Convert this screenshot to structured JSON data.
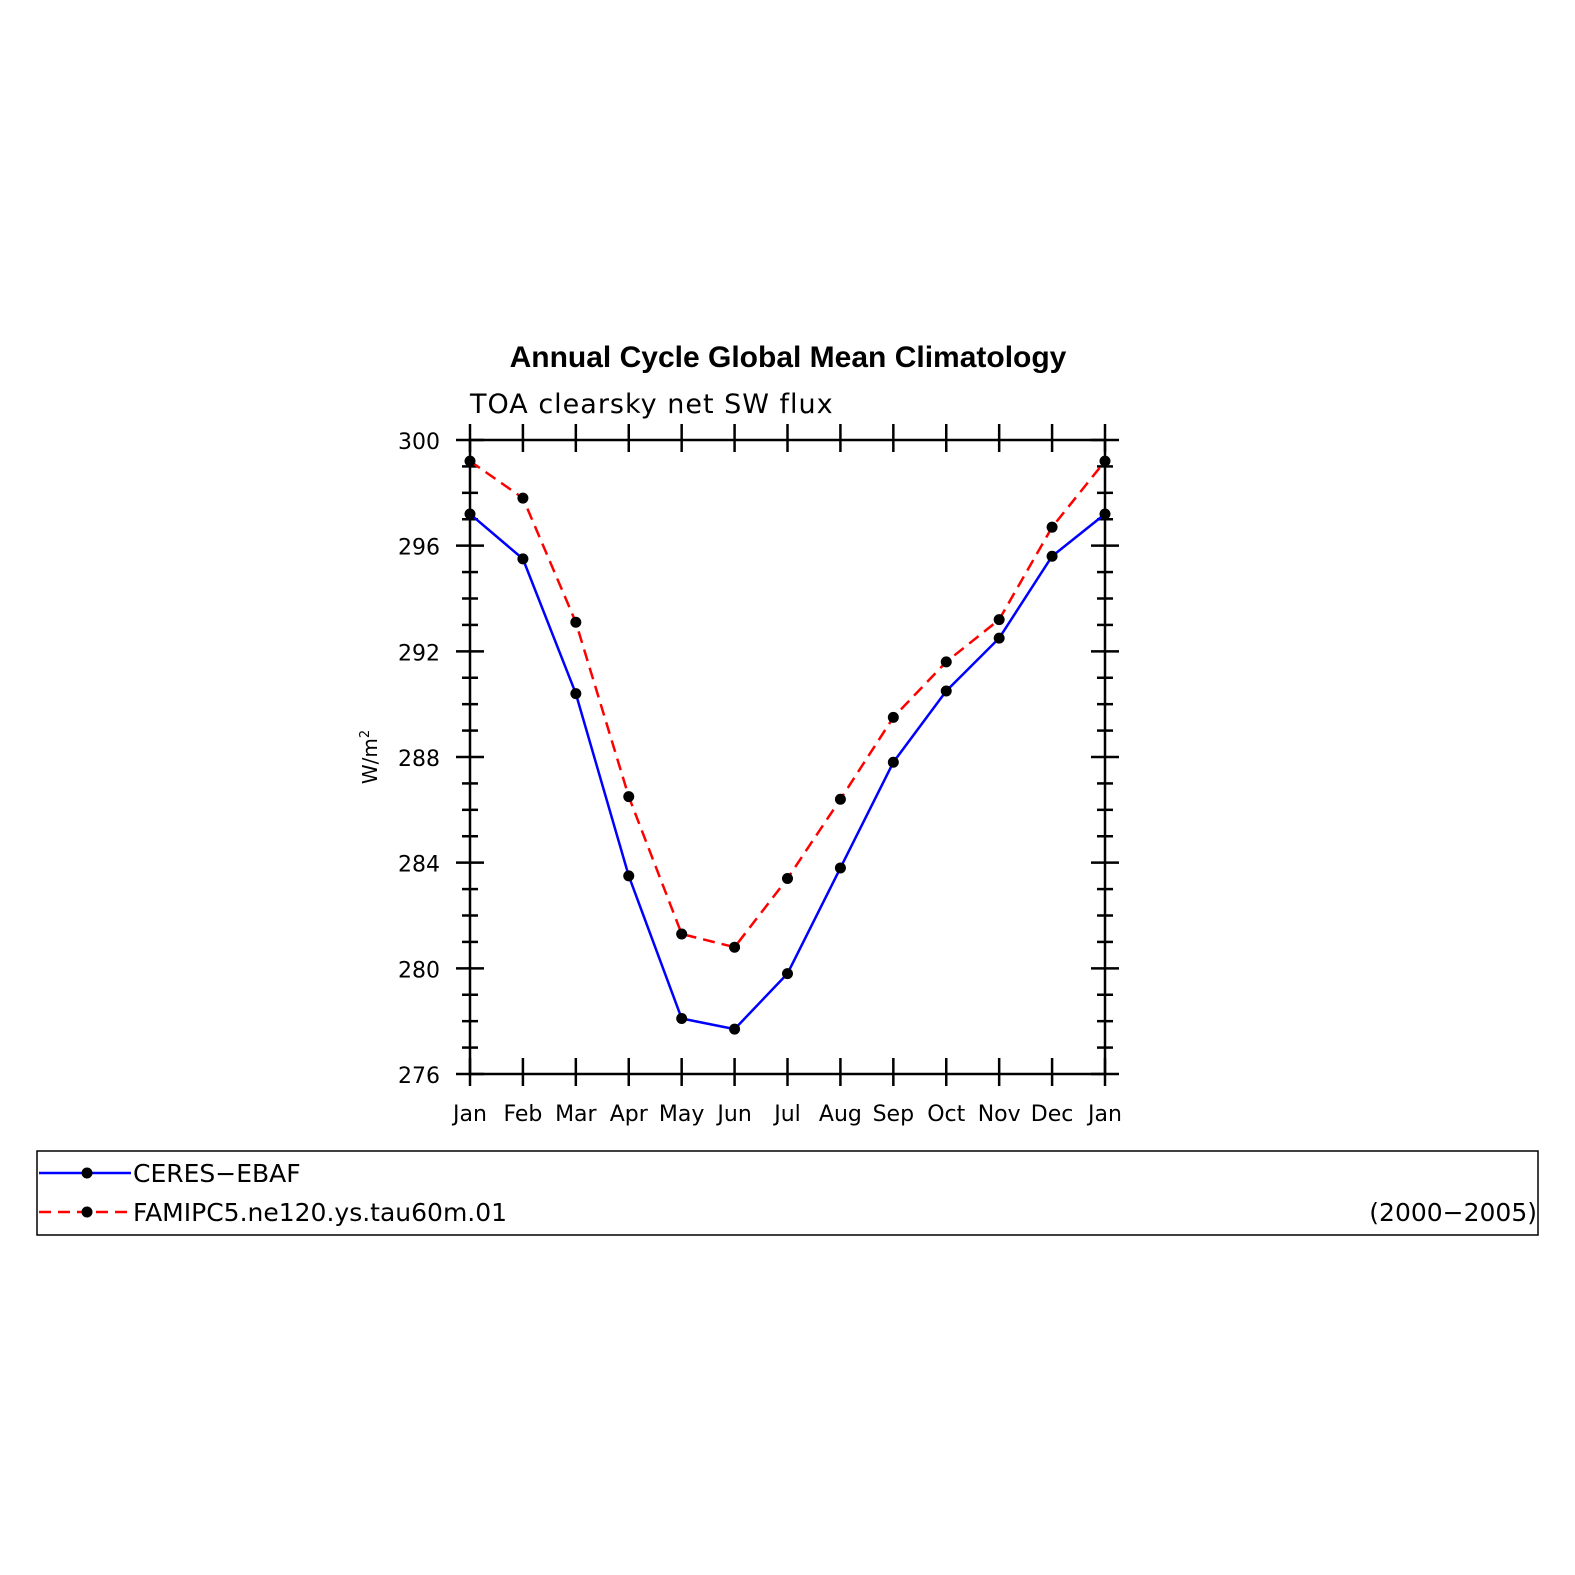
{
  "chart_data": {
    "type": "line",
    "title": "Annual Cycle Global Mean Climatology",
    "subtitle": "TOA clearsky net SW flux",
    "xlabel": "",
    "ylabel": "W/m",
    "ylabel_sup": "2",
    "categories": [
      "Jan",
      "Feb",
      "Mar",
      "Apr",
      "May",
      "Jun",
      "Jul",
      "Aug",
      "Sep",
      "Oct",
      "Nov",
      "Dec",
      "Jan"
    ],
    "ylim": [
      276,
      300
    ],
    "yticks": [
      276,
      280,
      284,
      288,
      292,
      296,
      300
    ],
    "grid": false,
    "legend_position": "bottom",
    "period_label": "(2000−2005)",
    "series": [
      {
        "name": "CERES−EBAF",
        "color": "#0000ff",
        "dash": "solid",
        "marker": "filled-circle",
        "marker_color": "#000000",
        "values": [
          297.2,
          295.5,
          290.4,
          283.5,
          278.1,
          277.7,
          279.8,
          283.8,
          287.8,
          290.5,
          292.5,
          295.6,
          297.2
        ]
      },
      {
        "name": "FAMIPC5.ne120.ys.tau60m.01",
        "color": "#ff0000",
        "dash": "dashed",
        "marker": "filled-circle",
        "marker_color": "#000000",
        "values": [
          299.2,
          297.8,
          293.1,
          286.5,
          281.3,
          280.8,
          283.4,
          286.4,
          289.5,
          291.6,
          293.2,
          296.7,
          299.2
        ]
      }
    ]
  }
}
